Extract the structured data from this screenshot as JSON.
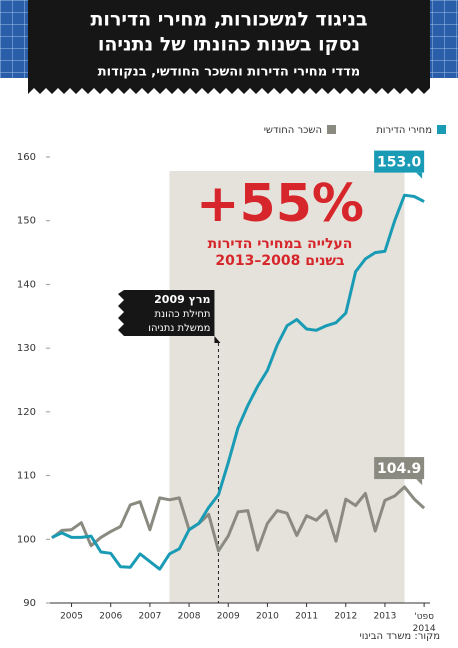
{
  "chart_data": {
    "type": "line",
    "title": "בניגוד למשכורות, מחירי הדירות",
    "title_line2": "נסקו בשנות כהונתו של נתניהו",
    "subtitle": "מדדי מחירי הדירות והשכר החודשי, בנקודות",
    "x": [
      2005,
      2005.25,
      2005.5,
      2005.75,
      2006,
      2006.25,
      2006.5,
      2006.75,
      2007,
      2007.25,
      2007.5,
      2007.75,
      2008,
      2008.25,
      2008.5,
      2008.75,
      2009,
      2009.25,
      2009.5,
      2009.75,
      2010,
      2010.25,
      2010.5,
      2010.75,
      2011,
      2011.25,
      2011.5,
      2011.75,
      2012,
      2012.25,
      2012.5,
      2012.75,
      2013,
      2013.25,
      2013.5,
      2013.75,
      2014,
      2014.25,
      2014.5
    ],
    "series": [
      {
        "name": "מחירי הדירות",
        "color": "#1a9bb5",
        "end_label": "153.0",
        "values": [
          100.3,
          101,
          100.3,
          100.3,
          100.5,
          98,
          97.8,
          95.7,
          95.6,
          97.7,
          96.5,
          95.3,
          97.7,
          98.5,
          101.5,
          102.5,
          105,
          107,
          112,
          117.5,
          121,
          124,
          126.5,
          130.5,
          133.5,
          134.5,
          133,
          132.8,
          133.5,
          134,
          135.5,
          142,
          144,
          145,
          145.2,
          150,
          154,
          153.8,
          153
        ]
      },
      {
        "name": "השכר החודשי",
        "color": "#8a8a80",
        "end_label": "104.9",
        "values": [
          100.2,
          101.4,
          101.5,
          102.6,
          99,
          100.3,
          101.2,
          102,
          105.4,
          105.9,
          101.5,
          106.5,
          106.2,
          106.5,
          101.5,
          102.5,
          103.9,
          98.2,
          100.5,
          104.3,
          104.5,
          98.3,
          102.5,
          104.5,
          104.1,
          100.6,
          103.7,
          103,
          104.5,
          99.7,
          106.3,
          105.3,
          107.2,
          101.3,
          106.1,
          106.8,
          108.2,
          106.3,
          104.9
        ]
      }
    ],
    "xlim": [
      2004.95,
      2014.65
    ],
    "xticks": [
      {
        "value": 2005.5,
        "label": "2005"
      },
      {
        "value": 2006.5,
        "label": "2006"
      },
      {
        "value": 2007.5,
        "label": "2007"
      },
      {
        "value": 2008.5,
        "label": "2008"
      },
      {
        "value": 2009.5,
        "label": "2009"
      },
      {
        "value": 2010.5,
        "label": "2010"
      },
      {
        "value": 2011.5,
        "label": "2011"
      },
      {
        "value": 2012.5,
        "label": "2012"
      },
      {
        "value": 2013.5,
        "label": "2013"
      },
      {
        "value": 2014.5,
        "label": "ספט' 2014"
      }
    ],
    "ylim": [
      90,
      160
    ],
    "yticks": [
      90,
      100,
      110,
      120,
      130,
      140,
      150,
      160
    ],
    "highlight_range": [
      2008,
      2014
    ],
    "marker_x": 2009.25,
    "marker_label": [
      "מרץ 2009",
      "תחילת כהונת",
      "ממשלת נתניהו"
    ],
    "annotation": "+55%",
    "annotation_text": [
      "העלייה במחירי הדירות",
      "בשנים 2008–2013"
    ],
    "source": "מקור: משרד הבינוי"
  }
}
